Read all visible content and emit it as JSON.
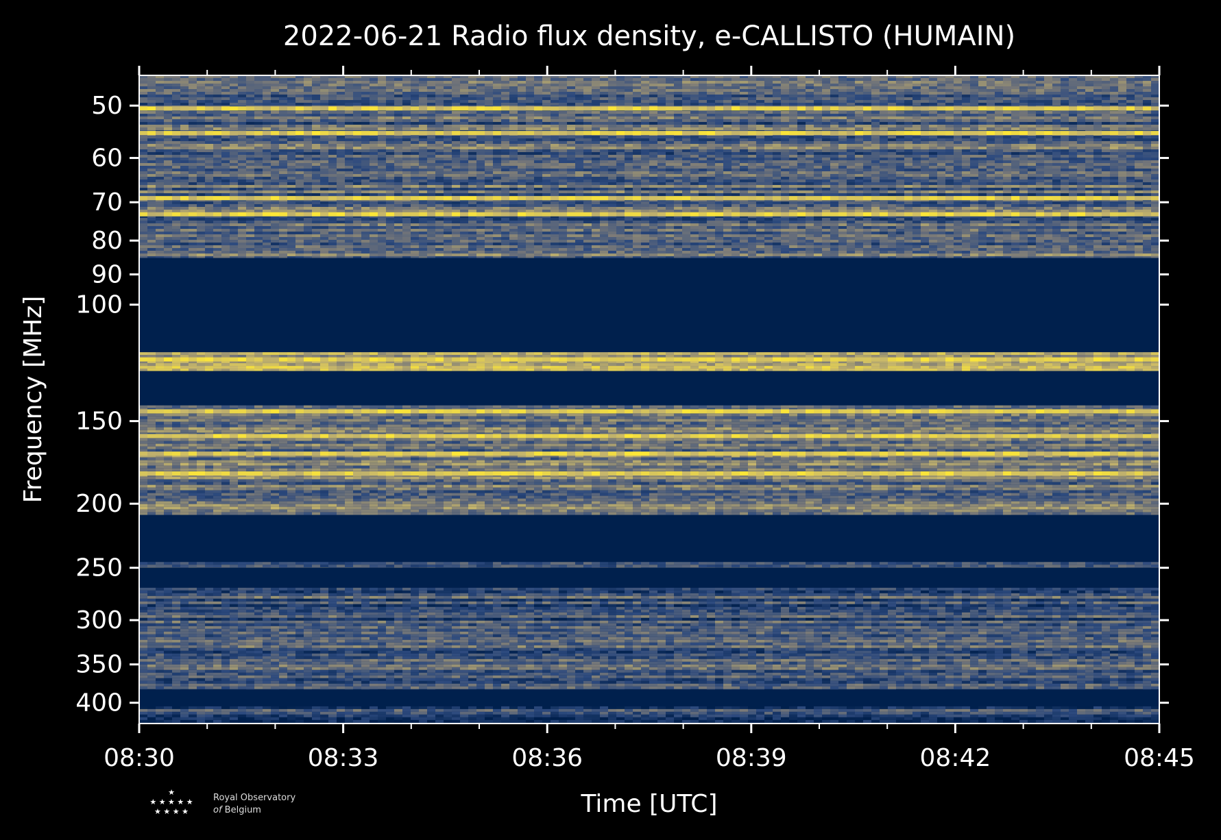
{
  "chart_data": {
    "type": "heatmap",
    "title": "2022-06-21 Radio flux density, e-CALLISTO (HUMAIN)",
    "xlabel": "Time [UTC]",
    "ylabel": "Frequency [MHz]",
    "x_range": [
      "08:30",
      "08:45"
    ],
    "y_range_mhz": [
      45,
      430
    ],
    "y_scale": "log",
    "y_inverted": true,
    "x_ticks": [
      "08:30",
      "08:33",
      "08:36",
      "08:39",
      "08:42",
      "08:45"
    ],
    "y_ticks": [
      50,
      60,
      70,
      80,
      90,
      100,
      150,
      200,
      250,
      300,
      350,
      400
    ],
    "grid": false,
    "colormap": [
      "#00204d",
      "#2d4a7e",
      "#7c7b78",
      "#c9b86a",
      "#fde737"
    ],
    "bands": [
      {
        "from_mhz": 45,
        "to_mhz": 85,
        "level": 0.38,
        "bright_lines_mhz": [
          50.5,
          55,
          69,
          73
        ]
      },
      {
        "from_mhz": 85,
        "to_mhz": 118,
        "level": 0.0
      },
      {
        "from_mhz": 118,
        "to_mhz": 126,
        "level": 0.65,
        "bright_lines_mhz": [
          121
        ]
      },
      {
        "from_mhz": 126,
        "to_mhz": 142,
        "level": 0.0
      },
      {
        "from_mhz": 142,
        "to_mhz": 208,
        "level": 0.45,
        "bright_lines_mhz": [
          145,
          158,
          168,
          180
        ]
      },
      {
        "from_mhz": 208,
        "to_mhz": 245,
        "level": 0.0
      },
      {
        "from_mhz": 245,
        "to_mhz": 250,
        "level": 0.35
      },
      {
        "from_mhz": 250,
        "to_mhz": 268,
        "level": 0.0
      },
      {
        "from_mhz": 268,
        "to_mhz": 382,
        "level": 0.3
      },
      {
        "from_mhz": 382,
        "to_mhz": 405,
        "level": 0.0
      },
      {
        "from_mhz": 405,
        "to_mhz": 430,
        "level": 0.25
      }
    ]
  },
  "logo": {
    "line1": "Royal Observatory",
    "line2_italic": "of",
    "line2": "Belgium"
  }
}
